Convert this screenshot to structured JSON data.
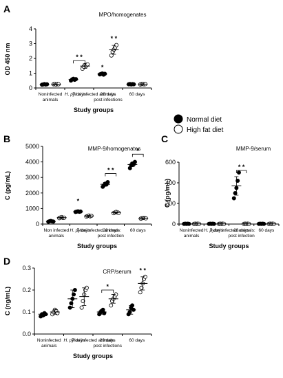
{
  "legend": {
    "normal": "Normal diet",
    "high_fat": "High fat diet"
  },
  "colors": {
    "normal": "#000000",
    "high_fat": "#ffffff",
    "stroke": "#000000",
    "stars": "#000000"
  },
  "chart_data": [
    {
      "id": "A",
      "panel_letter": "A",
      "type": "scatter",
      "title": "MPO/homogenates",
      "ylabel": "OD 450 nm",
      "xlabel": "Study groups",
      "ylim": [
        0,
        4
      ],
      "yticks": [
        "0",
        "1",
        "2",
        "3",
        "4"
      ],
      "group_labels": [
        "Noninfected\nanimals",
        "7 days",
        "28 days",
        "60 days"
      ],
      "group_caption_pre": "H. pylori",
      "group_caption_post": " infected animals:",
      "group_caption_line2": "post infections",
      "categories": [
        "Noninfected",
        "7 days",
        "28 days",
        "60 days"
      ],
      "series": [
        {
          "name": "Normal diet",
          "points": [
            [
              0.22,
              0.24,
              0.26,
              0.23,
              0.25
            ],
            [
              0.5,
              0.58,
              0.62,
              0.55,
              0.6
            ],
            [
              0.92,
              0.95,
              0.98,
              0.9,
              0.96
            ],
            [
              0.25,
              0.27,
              0.24,
              0.26,
              0.25
            ]
          ],
          "mean": [
            0.24,
            0.57,
            0.94,
            0.25
          ],
          "sd": [
            0.02,
            0.05,
            0.04,
            0.02
          ]
        },
        {
          "name": "High fat diet",
          "points": [
            [
              0.25,
              0.27,
              0.23,
              0.26,
              0.25
            ],
            [
              1.3,
              1.45,
              1.55,
              1.5,
              1.6
            ],
            [
              2.2,
              2.45,
              2.6,
              2.75,
              2.9
            ],
            [
              0.24,
              0.26,
              0.27,
              0.25,
              0.26
            ]
          ],
          "mean": [
            0.25,
            1.48,
            2.58,
            0.26
          ],
          "sd": [
            0.02,
            0.15,
            0.3,
            0.02
          ]
        }
      ],
      "annotations": [
        {
          "text": "* *",
          "group": 1,
          "y": 1.85,
          "bracket": true
        },
        {
          "text": "*",
          "group": 2,
          "series": 0,
          "y": 1.25
        },
        {
          "text": "* *",
          "group": 2,
          "series": 1,
          "y": 3.2
        }
      ]
    },
    {
      "id": "B",
      "panel_letter": "B",
      "type": "scatter",
      "title": "MMP-9/homogenates",
      "ylabel": "C (pg/mL)",
      "xlabel": "Study groups",
      "ylim": [
        0,
        5000
      ],
      "yticks": [
        "0",
        "1000",
        "2000",
        "3000",
        "4000",
        "5000"
      ],
      "group_labels": [
        "Non infected\nanimals",
        "7 days",
        "28 days",
        "60 days"
      ],
      "group_caption_pre": "H. pylori",
      "group_caption_post": " infected animals:",
      "group_caption_line2": "post infection",
      "categories": [
        "Non infected",
        "7 days",
        "28 days",
        "60 days"
      ],
      "series": [
        {
          "name": "Normal diet",
          "points": [
            [
              150,
              180,
              200,
              170,
              160
            ],
            [
              780,
              800,
              820,
              790,
              810
            ],
            [
              2400,
              2500,
              2600,
              2550,
              2700
            ],
            [
              3600,
              3800,
              3900,
              3850,
              4000
            ]
          ],
          "mean": [
            170,
            800,
            2560,
            3830
          ],
          "sd": [
            20,
            20,
            120,
            140
          ]
        },
        {
          "name": "High fat diet",
          "points": [
            [
              380,
              420,
              450,
              400,
              410
            ],
            [
              480,
              520,
              550,
              500,
              530
            ],
            [
              700,
              740,
              780,
              760,
              720
            ],
            [
              350,
              380,
              400,
              390,
              370
            ]
          ],
          "mean": [
            410,
            520,
            740,
            380
          ],
          "sd": [
            30,
            30,
            30,
            20
          ]
        }
      ],
      "annotations": [
        {
          "text": "*",
          "group": 1,
          "series": 0,
          "y": 1350
        },
        {
          "text": "* *",
          "group": 2,
          "y": 3250,
          "bracket": true
        },
        {
          "text": "*",
          "group": 3,
          "y": 4500,
          "bracket": true
        }
      ]
    },
    {
      "id": "C",
      "panel_letter": "C",
      "type": "scatter",
      "title": "MMP-9/serum",
      "ylabel": "C (pg/mL)",
      "xlabel": "Study groups",
      "ylim": [
        0,
        600
      ],
      "yticks": [
        "0",
        "200",
        "400",
        "600"
      ],
      "group_labels": [
        "Noninfected\nanimals",
        "7 days",
        "28 days",
        "60 days"
      ],
      "group_caption_pre": "H. pylori",
      "group_caption_post": " infected animals:",
      "group_caption_line2": "post infection",
      "categories": [
        "Noninfected",
        "7 days",
        "28 days",
        "60 days"
      ],
      "series": [
        {
          "name": "Normal diet",
          "points": [
            [
              2,
              3,
              2,
              3,
              2
            ],
            [
              2,
              3,
              2,
              3,
              2
            ],
            [
              250,
              300,
              350,
              420,
              500
            ],
            [
              2,
              3,
              2,
              3,
              2
            ]
          ],
          "mean": [
            2,
            2,
            370,
            2
          ],
          "sd": [
            1,
            1,
            90,
            1
          ]
        },
        {
          "name": "High fat diet",
          "points": [
            [
              2,
              3,
              2,
              3,
              2
            ],
            [
              2,
              3,
              2,
              3,
              2
            ],
            [
              2,
              3,
              2,
              3,
              2
            ],
            [
              2,
              3,
              2,
              3,
              2
            ]
          ],
          "mean": [
            2,
            2,
            2,
            2
          ],
          "sd": [
            1,
            1,
            1,
            1
          ]
        }
      ],
      "annotations": [
        {
          "text": "* *",
          "group": 2,
          "y": 520,
          "bracket": true
        }
      ]
    },
    {
      "id": "D",
      "panel_letter": "D",
      "type": "scatter",
      "title": "CRP/serum",
      "ylabel": "C (ng/mL)",
      "xlabel": "Study groups",
      "ylim": [
        0,
        0.3
      ],
      "yticks": [
        "0.0",
        "0.1",
        "0.2",
        "0.3"
      ],
      "group_labels": [
        "Noninfected\nanimals",
        "7 days",
        "28 days",
        "60 days"
      ],
      "group_caption_pre": "H. pylori",
      "group_caption_post": " infected animals:",
      "group_caption_line2": "post infections",
      "categories": [
        "Noninfected",
        "7 days",
        "28 days",
        "60 days"
      ],
      "series": [
        {
          "name": "Normal diet",
          "points": [
            [
              0.08,
              0.09,
              0.085,
              0.095,
              0.09
            ],
            [
              0.12,
              0.14,
              0.16,
              0.18,
              0.2
            ],
            [
              0.09,
              0.1,
              0.105,
              0.11,
              0.095
            ],
            [
              0.09,
              0.1,
              0.12,
              0.13,
              0.11
            ]
          ],
          "mean": [
            0.09,
            0.16,
            0.1,
            0.11
          ],
          "sd": [
            0.005,
            0.04,
            0.01,
            0.02
          ]
        },
        {
          "name": "High fat diet",
          "points": [
            [
              0.09,
              0.1,
              0.11,
              0.105,
              0.095
            ],
            [
              0.12,
              0.15,
              0.18,
              0.2,
              0.21
            ],
            [
              0.13,
              0.15,
              0.16,
              0.17,
              0.18
            ],
            [
              0.19,
              0.21,
              0.23,
              0.25,
              0.26
            ]
          ],
          "mean": [
            0.1,
            0.17,
            0.16,
            0.23
          ],
          "sd": [
            0.01,
            0.04,
            0.02,
            0.03
          ]
        }
      ],
      "annotations": [
        {
          "text": "*",
          "group": 2,
          "y": 0.2,
          "bracket": true
        },
        {
          "text": "* *",
          "group": 3,
          "series": 1,
          "y": 0.28
        }
      ]
    }
  ]
}
